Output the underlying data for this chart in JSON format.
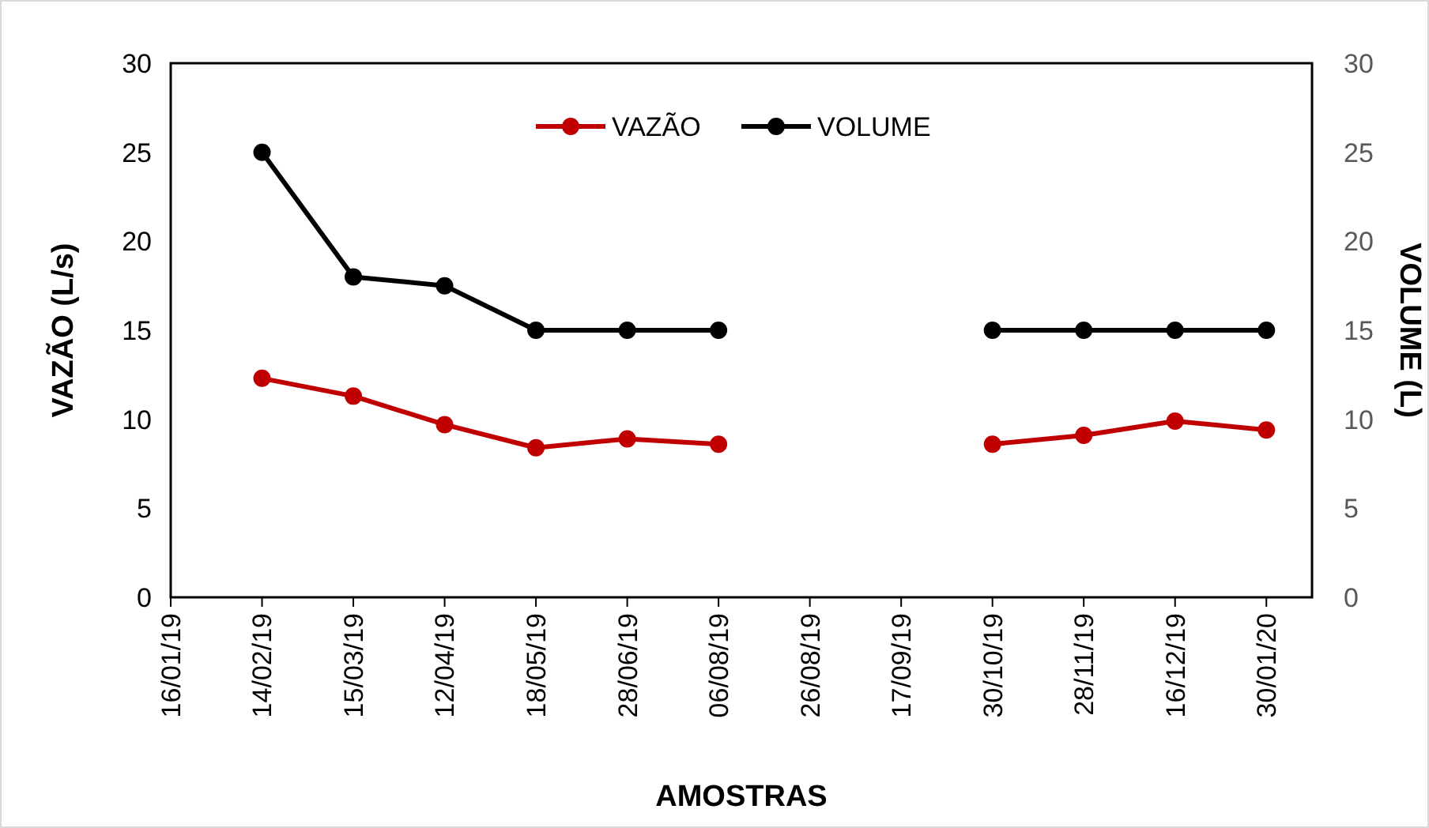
{
  "chart_data": {
    "type": "line",
    "xlabel": "AMOSTRAS",
    "ylabel": "VAZÃO (L/s)",
    "y2label": "VOLUME (L)",
    "categories": [
      "16/01/19",
      "14/02/19",
      "15/03/19",
      "12/04/19",
      "18/05/19",
      "28/06/19",
      "06/08/19",
      "26/08/19",
      "17/09/19",
      "30/10/19",
      "28/11/19",
      "16/12/19",
      "30/01/20"
    ],
    "series": [
      {
        "name": "VAZÃO",
        "color": "#c00000",
        "values": [
          null,
          12.3,
          11.3,
          9.7,
          8.4,
          8.9,
          8.6,
          null,
          null,
          8.6,
          9.1,
          9.9,
          9.4
        ]
      },
      {
        "name": "VOLUME",
        "color": "#000000",
        "axis": "y2",
        "values": [
          null,
          25,
          18,
          17.5,
          15,
          15,
          15,
          null,
          null,
          15,
          15,
          15,
          15
        ]
      }
    ],
    "ylim": [
      0,
      30
    ],
    "yticks": [
      0,
      5,
      10,
      15,
      20,
      25,
      30
    ],
    "y2lim": [
      0,
      30
    ],
    "y2ticks": [
      0,
      5,
      10,
      15,
      20,
      25,
      30
    ],
    "legend": "top",
    "marker": "circle",
    "line_style": "solid",
    "grid": false
  }
}
